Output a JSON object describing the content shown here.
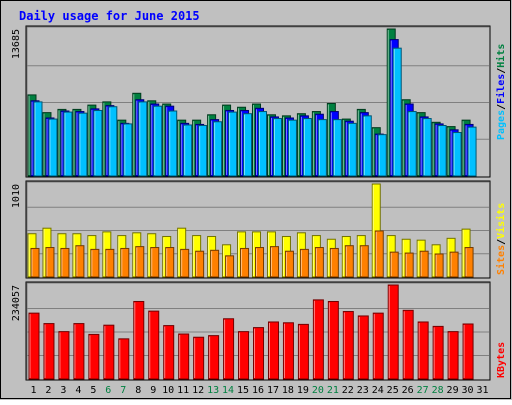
{
  "chart_data": {
    "type": "bar",
    "title": "Daily usage for June 2015",
    "categories": [
      "1",
      "2",
      "3",
      "4",
      "5",
      "6",
      "7",
      "8",
      "9",
      "10",
      "11",
      "12",
      "13",
      "14",
      "15",
      "16",
      "17",
      "18",
      "19",
      "20",
      "21",
      "22",
      "23",
      "24",
      "25",
      "26",
      "27",
      "28",
      "29",
      "30",
      "31"
    ],
    "weekend_days": [
      6,
      7,
      13,
      14,
      20,
      21,
      27,
      28
    ],
    "colors": {
      "background": "#c0c0c0",
      "title": "#0000ff",
      "hits": "#008040",
      "files": "#0000ff",
      "pages": "#00c0ff",
      "visits": "#ffff00",
      "sites": "#ff8000",
      "kbytes": "#ff0000",
      "weekend_label": "#008040",
      "weekday_label": "#000000"
    },
    "panels": [
      {
        "id": "requests",
        "max_label": "13685",
        "ylim": [
          0,
          13685
        ],
        "series": [
          {
            "name": "Hits",
            "values": [
              7550,
              5900,
              6200,
              6200,
              6600,
              6900,
              5200,
              7700,
              7000,
              6700,
              5200,
              5200,
              5700,
              6600,
              6400,
              6700,
              5700,
              5600,
              5800,
              6000,
              6750,
              5300,
              6200,
              4500,
              13685,
              7100,
              5900,
              5000,
              4600,
              5200,
              null
            ]
          },
          {
            "name": "Files",
            "values": [
              7000,
              5400,
              6050,
              6000,
              6250,
              6550,
              4900,
              7100,
              6700,
              6500,
              4900,
              4800,
              5250,
              6100,
              6100,
              6300,
              5500,
              5400,
              5600,
              5750,
              6000,
              5100,
              5900,
              3900,
              12700,
              6700,
              5500,
              4850,
              4300,
              4800,
              null
            ]
          },
          {
            "name": "Pages",
            "values": [
              6900,
              5300,
              5950,
              5850,
              6100,
              6450,
              4850,
              6900,
              6500,
              6050,
              4750,
              4700,
              5050,
              5950,
              5800,
              6000,
              5350,
              5200,
              5350,
              5250,
              5250,
              4900,
              5600,
              3850,
              11900,
              6000,
              5350,
              4700,
              4050,
              4550,
              null
            ]
          }
        ]
      },
      {
        "id": "visitors",
        "max_label": "1010",
        "ylim": [
          0,
          1010
        ],
        "series": [
          {
            "name": "Visits",
            "values": [
              470,
              530,
              470,
              470,
              450,
              490,
              450,
              480,
              470,
              440,
              530,
              450,
              440,
              350,
              490,
              490,
              490,
              440,
              480,
              450,
              410,
              440,
              450,
              1010,
              450,
              410,
              400,
              350,
              420,
              520,
              null
            ]
          },
          {
            "name": "Sites",
            "values": [
              310,
              320,
              310,
              340,
              300,
              300,
              310,
              330,
              320,
              320,
              300,
              280,
              290,
              230,
              310,
              320,
              330,
              280,
              300,
              320,
              310,
              340,
              340,
              500,
              270,
              260,
              280,
              250,
              270,
              320,
              null
            ]
          }
        ]
      },
      {
        "id": "volume",
        "max_label": "234057",
        "ylim": [
          0,
          234057
        ],
        "series": [
          {
            "name": "KBytes",
            "values": [
              164000,
              138000,
              118000,
              138000,
              111000,
              134000,
              100000,
              193000,
              169000,
              133000,
              112000,
              104000,
              108000,
              150000,
              118000,
              128000,
              142000,
              140000,
              136000,
              197000,
              193000,
              168000,
              157000,
              164000,
              234057,
              171000,
              142000,
              131000,
              118000,
              137000,
              null
            ]
          }
        ]
      }
    ],
    "legend": [
      {
        "panel": "requests",
        "items": [
          "Pages",
          "Files",
          "Hits"
        ]
      },
      {
        "panel": "visitors",
        "items": [
          "Sites",
          "Visits"
        ]
      },
      {
        "panel": "volume",
        "items": [
          "KBytes"
        ]
      }
    ]
  }
}
